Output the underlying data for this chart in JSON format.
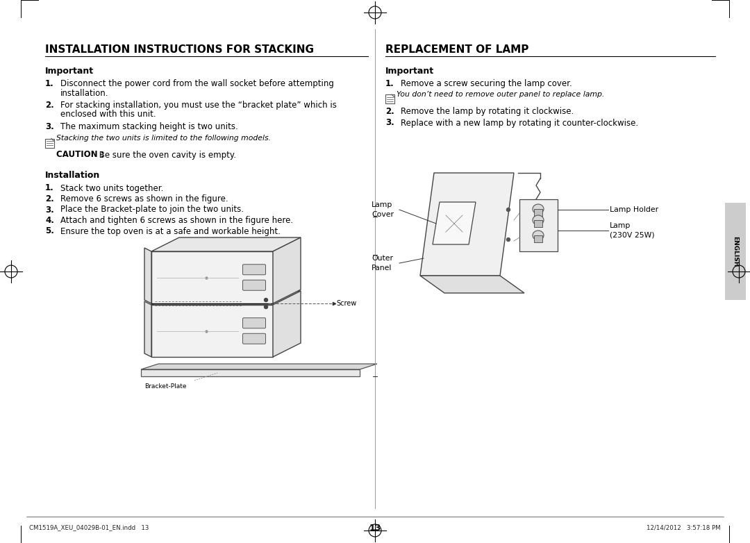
{
  "bg_color": "#ffffff",
  "page_num": "13",
  "footer_left": "CM1519A_XEU_04029B-01_EN.indd   13",
  "footer_right": "12/14/2012   3:57:18 PM",
  "left_section": {
    "title": "INSTALLATION INSTRUCTIONS FOR STACKING",
    "important_label": "Important",
    "items_important": [
      [
        "Disconnect the power cord from the wall socket before attempting",
        "installation."
      ],
      [
        "For stacking installation, you must use the “bracket plate” which is",
        "enclosed with this unit."
      ],
      [
        "The maximum stacking height is two units."
      ]
    ],
    "note_text": "Stacking the two units is limited to the following models.",
    "caution_bold": "CAUTION :",
    "caution_normal": " Be sure the oven cavity is empty.",
    "installation_label": "Installation",
    "items_installation": [
      "Stack two units together.",
      "Remove 6 screws as shown in the figure.",
      "Place the Bracket-plate to join the two units.",
      "Attach and tighten 6 screws as shown in the figure here.",
      "Ensure the top oven is at a safe and workable height."
    ]
  },
  "right_section": {
    "title": "REPLACEMENT OF LAMP",
    "important_label": "Important",
    "item1": "Remove a screw securing the lamp cover.",
    "note_text": "You don’t need to remove outer panel to replace lamp.",
    "item2": "Remove the lamp by rotating it clockwise.",
    "item3": "Replace with a new lamp by rotating it counter-clockwise.",
    "label_lamp_cover": "Lamp\nCover",
    "label_outer_panel": "Outer\nPanel",
    "label_lamp_holder": "Lamp Holder",
    "label_lamp": "Lamp\n(230V 25W)"
  },
  "english_tab": "ENGLISH",
  "tab_bg": "#cccccc",
  "tab_text": "#000000"
}
